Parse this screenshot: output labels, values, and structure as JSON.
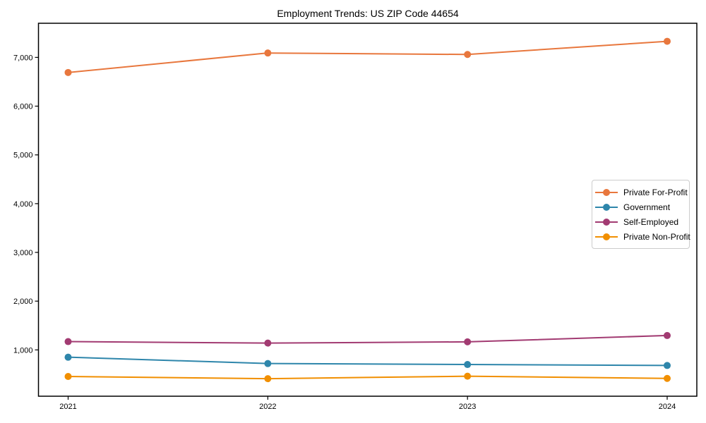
{
  "page": {
    "title": "Employment Trends: US ZIP Code 44654"
  },
  "chart_data": {
    "type": "line",
    "title": "Employment Trends: US ZIP Code 44654",
    "xlabel": "",
    "ylabel": "",
    "categories": [
      "2021",
      "2022",
      "2023",
      "2024"
    ],
    "series": [
      {
        "name": "Private For-Profit",
        "color": "#e8773d",
        "values": [
          6690,
          7090,
          7060,
          7330
        ]
      },
      {
        "name": "Government",
        "color": "#2e86ab",
        "values": [
          850,
          720,
          700,
          680
        ]
      },
      {
        "name": "Self-Employed",
        "color": "#a23b72",
        "values": [
          1170,
          1140,
          1165,
          1295
        ]
      },
      {
        "name": "Private Non-Profit",
        "color": "#f18f01",
        "values": [
          455,
          410,
          460,
          415
        ]
      }
    ],
    "ylim": [
      50,
      7700
    ],
    "yticks": [
      1000,
      2000,
      3000,
      4000,
      5000,
      6000,
      7000
    ],
    "ytick_labels": [
      "1,000",
      "2,000",
      "3,000",
      "4,000",
      "5,000",
      "6,000",
      "7,000"
    ],
    "grid": false,
    "marker": "circle",
    "legend_position": "right-middle",
    "axis_color": "#000000"
  }
}
